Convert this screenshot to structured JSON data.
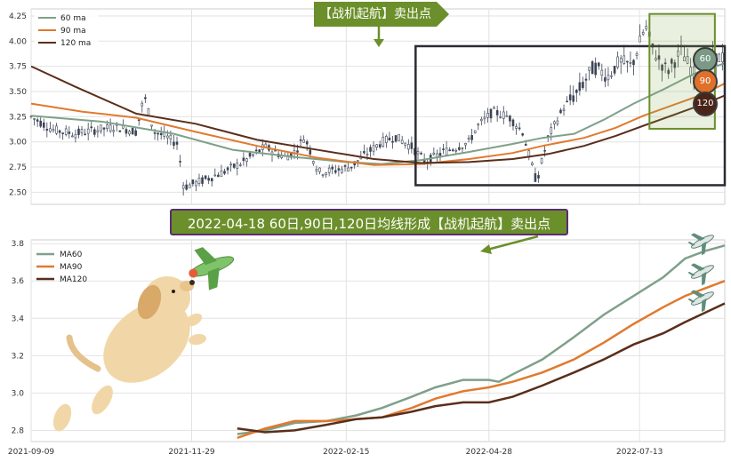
{
  "colors": {
    "ma60": "#7fa08a",
    "ma90": "#e07a2e",
    "ma120": "#5a2e1a",
    "candle": "#3c4454",
    "highlight_box": "#2b2b33",
    "accent_green": "#6b8f2a",
    "badge60": "#7a9a86",
    "badge90": "#e0702a",
    "badge120": "#4a2418",
    "grid": "#e2e2e2"
  },
  "banners": {
    "top": "【战机起航】卖出点",
    "middle": "2022-04-18 60日,90日,120日均线形成【战机起航】卖出点"
  },
  "badges": {
    "b60": "60",
    "b90": "90",
    "b120": "120"
  },
  "icons": {
    "planes": "airplane-icon",
    "dog": "dog-illustration",
    "toy_plane": "toy-airplane-icon"
  },
  "chart_data": [
    {
      "type": "line",
      "subtype": "candlestick_with_moving_averages",
      "legend": [
        "60 ma",
        "90 ma",
        "120 ma"
      ],
      "legend_placement": "top-left",
      "grid": true,
      "yticks": [
        "2.50",
        "2.75",
        "3.00",
        "3.25",
        "3.50",
        "3.75",
        "4.00",
        "4.25"
      ],
      "ylim": [
        2.38,
        4.32
      ],
      "x_range": [
        "2021-09-09",
        "2022-08-25"
      ],
      "price_path": [
        [
          "2021-09-09",
          3.25
        ],
        [
          "2021-09-20",
          3.12
        ],
        [
          "2021-10-01",
          3.08
        ],
        [
          "2021-10-12",
          3.12
        ],
        [
          "2021-10-22",
          3.15
        ],
        [
          "2021-11-01",
          3.1
        ],
        [
          "2021-11-05",
          3.45
        ],
        [
          "2021-11-10",
          3.1
        ],
        [
          "2021-11-16",
          3.05
        ],
        [
          "2021-11-22",
          2.98
        ],
        [
          "2021-11-25",
          2.55
        ],
        [
          "2021-12-05",
          2.62
        ],
        [
          "2021-12-15",
          2.7
        ],
        [
          "2021-12-25",
          2.8
        ],
        [
          "2022-01-05",
          2.95
        ],
        [
          "2022-01-15",
          2.85
        ],
        [
          "2022-01-20",
          2.9
        ],
        [
          "2022-01-25",
          3.05
        ],
        [
          "2022-02-01",
          2.7
        ],
        [
          "2022-02-10",
          2.72
        ],
        [
          "2022-02-17",
          2.75
        ],
        [
          "2022-02-25",
          2.88
        ],
        [
          "2022-03-05",
          3.0
        ],
        [
          "2022-03-12",
          3.05
        ],
        [
          "2022-03-20",
          2.95
        ],
        [
          "2022-03-27",
          2.8
        ],
        [
          "2022-04-05",
          2.9
        ],
        [
          "2022-04-12",
          2.95
        ],
        [
          "2022-04-18",
          3.0
        ],
        [
          "2022-04-22",
          3.15
        ],
        [
          "2022-04-30",
          3.3
        ],
        [
          "2022-05-08",
          3.25
        ],
        [
          "2022-05-15",
          3.1
        ],
        [
          "2022-05-22",
          2.6
        ],
        [
          "2022-05-28",
          3.05
        ],
        [
          "2022-06-05",
          3.35
        ],
        [
          "2022-06-12",
          3.5
        ],
        [
          "2022-06-20",
          3.75
        ],
        [
          "2022-06-27",
          3.65
        ],
        [
          "2022-07-03",
          3.8
        ],
        [
          "2022-07-09",
          3.75
        ],
        [
          "2022-07-16",
          4.15
        ],
        [
          "2022-07-20",
          3.9
        ],
        [
          "2022-07-27",
          3.7
        ],
        [
          "2022-08-03",
          3.9
        ],
        [
          "2022-08-10",
          3.65
        ],
        [
          "2022-08-17",
          3.8
        ],
        [
          "2022-08-25",
          3.85
        ]
      ],
      "series": [
        {
          "name": "60 ma",
          "points": [
            [
              "2021-09-09",
              3.26
            ],
            [
              "2021-10-15",
              3.2
            ],
            [
              "2021-11-20",
              3.08
            ],
            [
              "2021-12-20",
              2.92
            ],
            [
              "2022-01-20",
              2.85
            ],
            [
              "2022-02-15",
              2.8
            ],
            [
              "2022-03-05",
              2.78
            ],
            [
              "2022-03-25",
              2.82
            ],
            [
              "2022-04-18",
              2.9
            ],
            [
              "2022-05-10",
              2.98
            ],
            [
              "2022-05-25",
              3.04
            ],
            [
              "2022-06-10",
              3.08
            ],
            [
              "2022-06-25",
              3.22
            ],
            [
              "2022-07-10",
              3.38
            ],
            [
              "2022-07-25",
              3.52
            ],
            [
              "2022-08-10",
              3.68
            ],
            [
              "2022-08-25",
              3.78
            ]
          ]
        },
        {
          "name": "90 ma",
          "points": [
            [
              "2021-09-09",
              3.38
            ],
            [
              "2021-10-05",
              3.3
            ],
            [
              "2021-11-01",
              3.24
            ],
            [
              "2021-12-01",
              3.1
            ],
            [
              "2022-01-01",
              2.96
            ],
            [
              "2022-02-01",
              2.84
            ],
            [
              "2022-03-01",
              2.77
            ],
            [
              "2022-03-25",
              2.78
            ],
            [
              "2022-04-18",
              2.83
            ],
            [
              "2022-05-10",
              2.89
            ],
            [
              "2022-05-25",
              2.96
            ],
            [
              "2022-06-15",
              3.04
            ],
            [
              "2022-07-01",
              3.14
            ],
            [
              "2022-07-15",
              3.26
            ],
            [
              "2022-08-01",
              3.38
            ],
            [
              "2022-08-15",
              3.48
            ],
            [
              "2022-08-25",
              3.58
            ]
          ]
        },
        {
          "name": "120 ma",
          "points": [
            [
              "2021-09-09",
              3.75
            ],
            [
              "2021-10-01",
              3.55
            ],
            [
              "2021-11-01",
              3.28
            ],
            [
              "2021-12-01",
              3.18
            ],
            [
              "2022-01-01",
              3.02
            ],
            [
              "2022-02-01",
              2.92
            ],
            [
              "2022-03-01",
              2.83
            ],
            [
              "2022-03-25",
              2.79
            ],
            [
              "2022-04-18",
              2.8
            ],
            [
              "2022-05-10",
              2.83
            ],
            [
              "2022-05-28",
              2.88
            ],
            [
              "2022-06-15",
              2.96
            ],
            [
              "2022-07-01",
              3.06
            ],
            [
              "2022-07-15",
              3.16
            ],
            [
              "2022-08-01",
              3.28
            ],
            [
              "2022-08-15",
              3.38
            ],
            [
              "2022-08-25",
              3.46
            ]
          ]
        }
      ],
      "annotations": {
        "highlight_range": {
          "x_from": "2022-03-22",
          "x_to": "2022-08-25",
          "y_from": 2.57,
          "y_to": 3.95
        },
        "focus_range": {
          "x_from": "2022-07-18",
          "x_to": "2022-08-20",
          "y_from": 3.13,
          "y_to": 4.27
        }
      }
    },
    {
      "type": "line",
      "legend": [
        "MA60",
        "MA90",
        "MA120"
      ],
      "legend_placement": "top-left",
      "grid": true,
      "yticks": [
        "2.8",
        "3.0",
        "3.2",
        "3.4",
        "3.6",
        "3.8"
      ],
      "ylim": [
        2.74,
        3.82
      ],
      "xticks": [
        "2021-09-09",
        "2021-11-29",
        "2022-02-15",
        "2022-04-28",
        "2022-07-13"
      ],
      "x_range": [
        "2021-09-09",
        "2022-08-25"
      ],
      "series": [
        {
          "name": "MA60",
          "points": [
            [
              "2021-12-22",
              2.78
            ],
            [
              "2022-01-05",
              2.8
            ],
            [
              "2022-01-20",
              2.84
            ],
            [
              "2022-02-05",
              2.85
            ],
            [
              "2022-02-20",
              2.88
            ],
            [
              "2022-03-05",
              2.92
            ],
            [
              "2022-03-20",
              2.98
            ],
            [
              "2022-04-01",
              3.03
            ],
            [
              "2022-04-15",
              3.07
            ],
            [
              "2022-04-28",
              3.07
            ],
            [
              "2022-05-03",
              3.06
            ],
            [
              "2022-05-10",
              3.1
            ],
            [
              "2022-05-25",
              3.18
            ],
            [
              "2022-06-10",
              3.3
            ],
            [
              "2022-06-25",
              3.42
            ],
            [
              "2022-07-10",
              3.52
            ],
            [
              "2022-07-25",
              3.62
            ],
            [
              "2022-08-05",
              3.72
            ],
            [
              "2022-08-15",
              3.76
            ],
            [
              "2022-08-25",
              3.79
            ]
          ]
        },
        {
          "name": "MA90",
          "points": [
            [
              "2021-12-22",
              2.76
            ],
            [
              "2022-01-05",
              2.81
            ],
            [
              "2022-01-20",
              2.85
            ],
            [
              "2022-02-05",
              2.85
            ],
            [
              "2022-02-20",
              2.86
            ],
            [
              "2022-03-05",
              2.87
            ],
            [
              "2022-03-20",
              2.92
            ],
            [
              "2022-04-01",
              2.97
            ],
            [
              "2022-04-15",
              3.01
            ],
            [
              "2022-04-28",
              3.03
            ],
            [
              "2022-05-10",
              3.06
            ],
            [
              "2022-05-25",
              3.11
            ],
            [
              "2022-06-10",
              3.18
            ],
            [
              "2022-06-25",
              3.27
            ],
            [
              "2022-07-10",
              3.37
            ],
            [
              "2022-07-25",
              3.46
            ],
            [
              "2022-08-05",
              3.52
            ],
            [
              "2022-08-15",
              3.56
            ],
            [
              "2022-08-25",
              3.6
            ]
          ]
        },
        {
          "name": "MA120",
          "points": [
            [
              "2021-12-22",
              2.81
            ],
            [
              "2022-01-05",
              2.79
            ],
            [
              "2022-01-20",
              2.8
            ],
            [
              "2022-02-05",
              2.83
            ],
            [
              "2022-02-20",
              2.86
            ],
            [
              "2022-03-05",
              2.87
            ],
            [
              "2022-03-20",
              2.9
            ],
            [
              "2022-04-01",
              2.93
            ],
            [
              "2022-04-15",
              2.95
            ],
            [
              "2022-04-28",
              2.95
            ],
            [
              "2022-05-10",
              2.98
            ],
            [
              "2022-05-25",
              3.04
            ],
            [
              "2022-06-10",
              3.11
            ],
            [
              "2022-06-25",
              3.18
            ],
            [
              "2022-07-10",
              3.26
            ],
            [
              "2022-07-25",
              3.32
            ],
            [
              "2022-08-05",
              3.38
            ],
            [
              "2022-08-15",
              3.43
            ],
            [
              "2022-08-25",
              3.48
            ]
          ]
        }
      ]
    }
  ]
}
